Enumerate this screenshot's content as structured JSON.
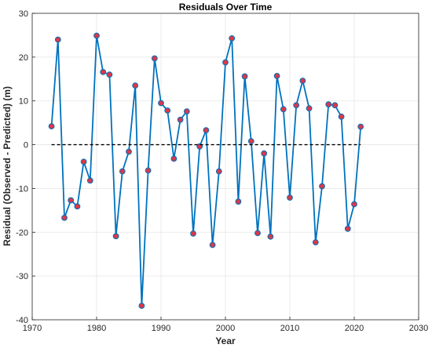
{
  "chart_data": {
    "type": "line",
    "title": "Residuals Over Time",
    "xlabel": "Year",
    "ylabel": "Residual (Observed - Predicted) (m)",
    "xlim": [
      1970,
      2030
    ],
    "ylim": [
      -40,
      30
    ],
    "xticks": [
      1970,
      1980,
      1990,
      2000,
      2010,
      2020,
      2030
    ],
    "yticks": [
      -40,
      -30,
      -20,
      -10,
      0,
      10,
      20,
      30
    ],
    "grid": true,
    "series": [
      {
        "style": "line-with-markers",
        "color": "#0072BD",
        "marker_color": "#D9384A",
        "x": [
          1973,
          1974,
          1975,
          1976,
          1977,
          1978,
          1979,
          1980,
          1981,
          1982,
          1983,
          1984,
          1985,
          1986,
          1987,
          1988,
          1989,
          1990,
          1991,
          1992,
          1993,
          1994,
          1995,
          1996,
          1997,
          1998,
          1999,
          2000,
          2001,
          2002,
          2003,
          2004,
          2005,
          2006,
          2007,
          2008,
          2009,
          2010,
          2011,
          2012,
          2013,
          2014,
          2015,
          2016,
          2017,
          2018,
          2019,
          2020,
          2021
        ],
        "y": [
          4.2,
          24.0,
          -16.7,
          -12.7,
          -14.1,
          -3.9,
          -8.2,
          24.9,
          16.6,
          16.0,
          -20.9,
          -6.1,
          -1.6,
          13.5,
          -36.8,
          -5.9,
          19.7,
          9.5,
          7.8,
          -3.2,
          5.7,
          7.6,
          -20.3,
          -0.4,
          3.3,
          -22.9,
          -6.1,
          18.8,
          24.3,
          -13.0,
          15.6,
          0.8,
          -20.2,
          -2.0,
          -21.0,
          15.7,
          8.1,
          -12.1,
          9.0,
          14.6,
          8.3,
          -22.3,
          -9.5,
          9.2,
          9.0,
          6.4,
          -19.2,
          -13.6,
          4.1
        ]
      },
      {
        "style": "dashed",
        "color": "#000000",
        "x": [
          1973,
          2021
        ],
        "y": [
          0,
          0
        ]
      }
    ]
  }
}
